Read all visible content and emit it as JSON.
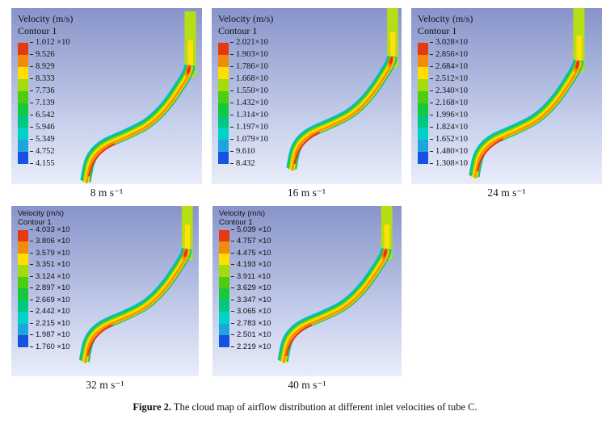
{
  "figure": {
    "caption_label": "Figure 2.",
    "caption_text": " The cloud map of airflow distribution at different inlet velocities of tube C."
  },
  "legend": {
    "title": "Velocity (m/s)",
    "subtitle": "Contour 1"
  },
  "legend_colors": [
    "#e53912",
    "#f28a0a",
    "#ffdf00",
    "#a2dc0a",
    "#4ecd0e",
    "#16c83c",
    "#00c882",
    "#00d2c8",
    "#1ea5dc",
    "#1652e0"
  ],
  "panels": [
    {
      "caption": "8 m s⁻¹",
      "values": [
        "1.012 ×10",
        "9.526",
        "8.929",
        "8.333",
        "7.736",
        "7.139",
        "6.542",
        "5.946",
        "5.349",
        "4.752",
        "4.155"
      ]
    },
    {
      "caption": "16 m s⁻¹",
      "values": [
        "2.021×10",
        "1.903×10",
        "1.786×10",
        "1.668×10",
        "1.550×10",
        "1.432×10",
        "1.314×10",
        "1.197×10",
        "1.079×10",
        "9.610",
        "8.432"
      ]
    },
    {
      "caption": "24 m s⁻¹",
      "values": [
        "3.028×10",
        "2.856×10",
        "2.684×10",
        "2.512×10",
        "2.340×10",
        "2.168×10",
        "1.996×10",
        "1.824×10",
        "1.652×10",
        "1.480×10",
        "1.308×10"
      ]
    },
    {
      "caption": "32 m s⁻¹",
      "values": [
        "4.033 ×10",
        "3.806 ×10",
        "3.579 ×10",
        "3.351 ×10",
        "3.124 ×10",
        "2.897 ×10",
        "2.669 ×10",
        "2.442 ×10",
        "2.215 ×10",
        "1.987 ×10",
        "1.760 ×10"
      ]
    },
    {
      "caption": "40 m s⁻¹",
      "values": [
        "5.039 ×10",
        "4.757 ×10",
        "4.475 ×10",
        "4.193 ×10",
        "3.911 ×10",
        "3.629 ×10",
        "3.347 ×10",
        "3.065 ×10",
        "2.783 ×10",
        "2.501 ×10",
        "2.219 ×10"
      ]
    }
  ]
}
